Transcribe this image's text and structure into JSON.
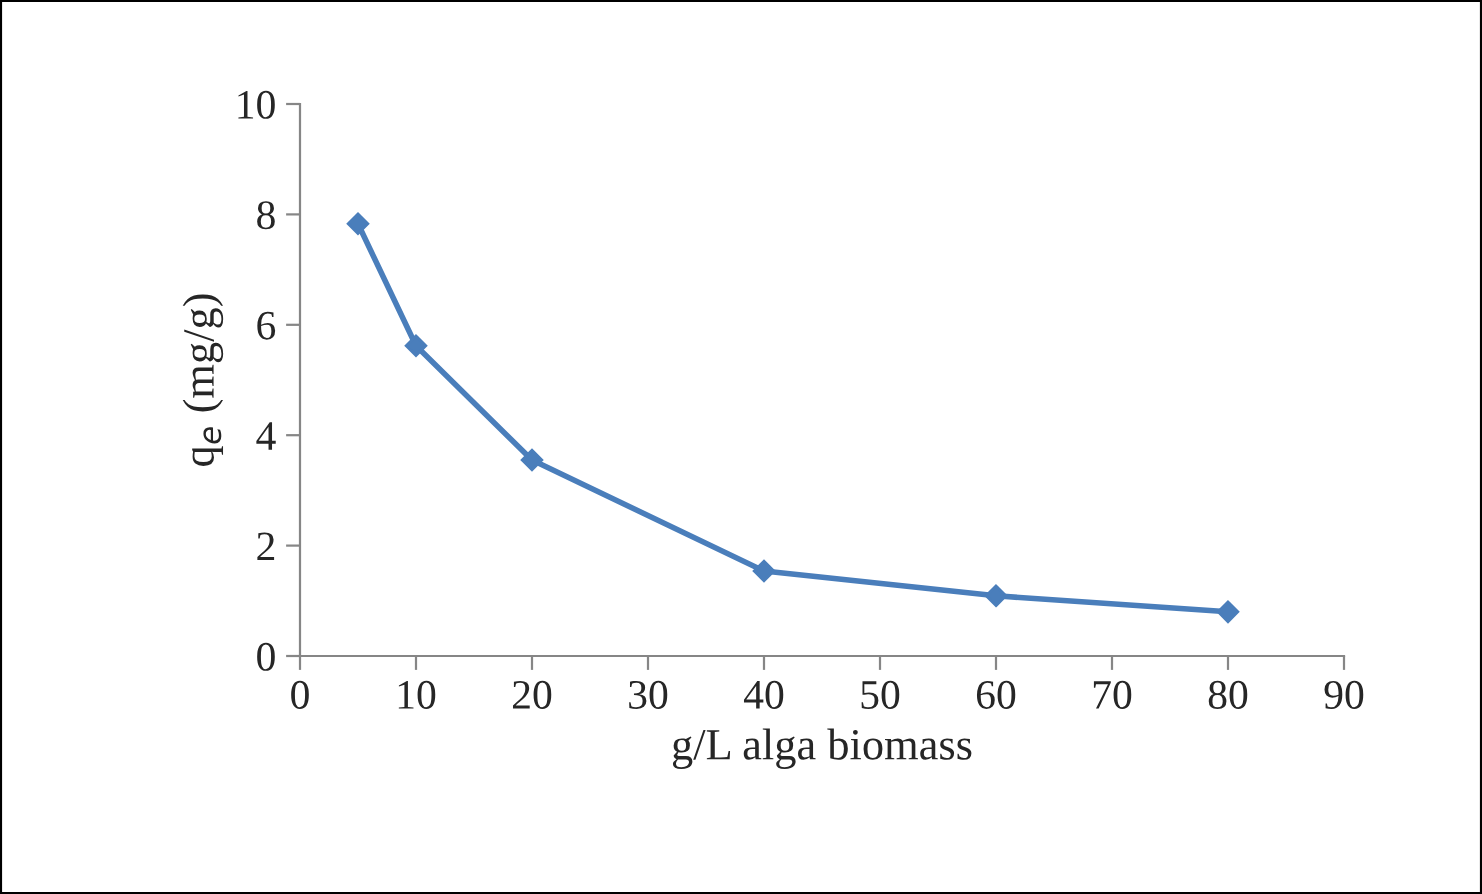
{
  "chart_data": {
    "type": "line",
    "xlabel": "g/L alga biomass",
    "ylabel": "q$_{e}$ (mg/g)",
    "x": [
      5,
      10,
      20,
      40,
      60,
      80
    ],
    "series": [
      {
        "color": "#4a7ebb",
        "values": [
          7.83,
          5.62,
          3.55,
          1.54,
          1.09,
          0.8
        ]
      }
    ],
    "xlim": [
      0,
      90
    ],
    "xticks": [
      0,
      10,
      20,
      30,
      40,
      50,
      60,
      70,
      80,
      90
    ],
    "ylim": [
      0,
      10
    ],
    "yticks": [
      0,
      2,
      4,
      6,
      8,
      10
    ],
    "grid": false,
    "legend": false,
    "marker": "diamond",
    "line_style": "solid"
  }
}
